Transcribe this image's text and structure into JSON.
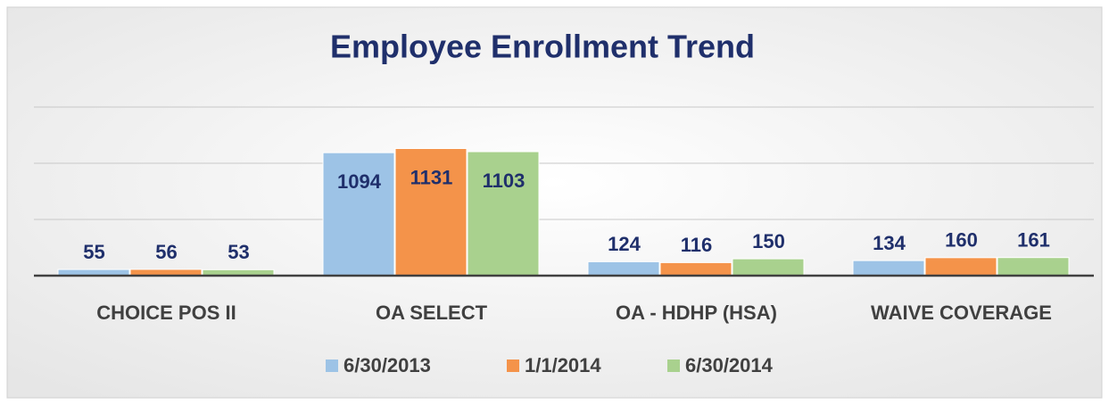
{
  "chart_data": {
    "type": "bar",
    "title": "Employee Enrollment Trend",
    "categories": [
      "CHOICE POS II",
      "OA SELECT",
      "OA - HDHP (HSA)",
      "WAIVE COVERAGE"
    ],
    "series": [
      {
        "name": "6/30/2013",
        "color": "#9dc3e6",
        "values": [
          55,
          1094,
          124,
          134
        ]
      },
      {
        "name": "1/1/2014",
        "color": "#f4934a",
        "values": [
          56,
          1131,
          116,
          160
        ]
      },
      {
        "name": "6/30/2014",
        "color": "#a9d18e",
        "values": [
          53,
          1103,
          150,
          161
        ]
      }
    ],
    "ylim": [
      0,
      1500
    ],
    "yticks": [
      0,
      500,
      1000,
      1500
    ],
    "grid": true
  }
}
